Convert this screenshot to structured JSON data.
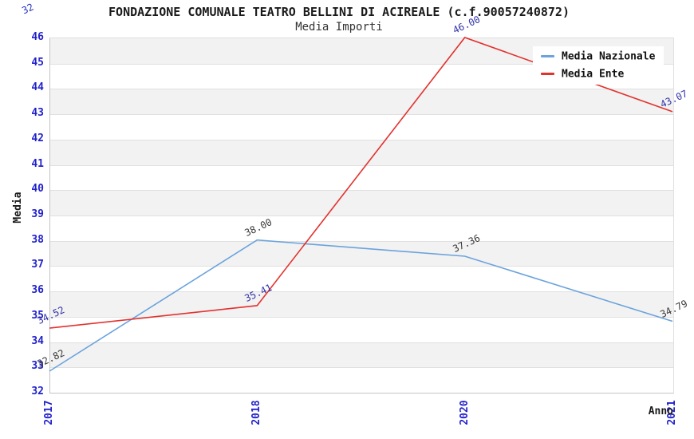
{
  "chart_data": {
    "type": "line",
    "title": "FONDAZIONE COMUNALE TEATRO BELLINI DI ACIREALE (c.f.90057240872)",
    "subtitle": "Media Importi",
    "xlabel": "Anno",
    "ylabel": "Media",
    "categories": [
      "2017",
      "2018",
      "2020",
      "2021"
    ],
    "series": [
      {
        "name": "Media Nazionale",
        "color": "#6ba3dd",
        "label_color": "#3a3a3a",
        "values": [
          32.82,
          38.0,
          37.36,
          34.79
        ],
        "labels": [
          "32.82",
          "38.00",
          "37.36",
          "34.79"
        ]
      },
      {
        "name": "Media Ente",
        "color": "#e2322e",
        "label_color": "#3333aa",
        "values": [
          34.52,
          35.41,
          46.0,
          43.07
        ],
        "labels": [
          "34.52",
          "35.41",
          "46.00",
          "43.07"
        ]
      }
    ],
    "ylim": [
      32,
      46
    ],
    "ytick_step": 1,
    "grid": true,
    "legend_position": "top-right",
    "stray_label": "32",
    "colors": {
      "tick_label": "#2222cc",
      "band": "#f2f2f2",
      "gridline": "#e0e0e0",
      "axis": "#c4c4c4",
      "title": "#1a1a1a",
      "subtitle": "#333333",
      "stray_label": "#2233bb"
    }
  }
}
